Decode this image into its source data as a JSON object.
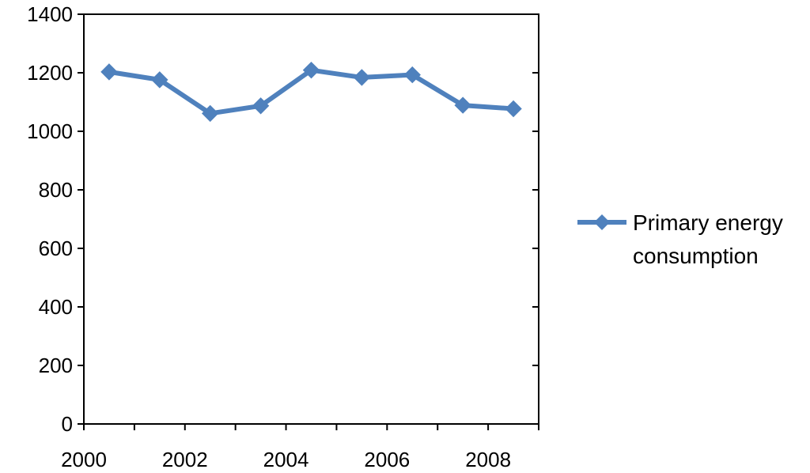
{
  "chart_data": {
    "type": "line",
    "x": [
      2000,
      2001,
      2002,
      2003,
      2004,
      2005,
      2006,
      2007,
      2008
    ],
    "x_tick_labels": [
      "2000",
      "2002",
      "2004",
      "2006",
      "2008"
    ],
    "x_tick_values": [
      2000,
      2002,
      2004,
      2006,
      2008
    ],
    "series": [
      {
        "name": "Primary energy consumption",
        "name_lines": [
          "Primary energy",
          "consumption"
        ],
        "values": [
          1203,
          1176,
          1061,
          1087,
          1209,
          1184,
          1193,
          1089,
          1077
        ],
        "color": "#4F81BD",
        "marker": "diamond"
      }
    ],
    "y_tick_labels": [
      "0",
      "200",
      "400",
      "600",
      "800",
      "1000",
      "1200",
      "1400"
    ],
    "y_tick_values": [
      0,
      200,
      400,
      600,
      800,
      1000,
      1200,
      1400
    ],
    "ylim": [
      0,
      1400
    ],
    "xlim": [
      2000,
      2009
    ],
    "title": "",
    "xlabel": "",
    "ylabel": "",
    "grid": false,
    "legend_position": "right"
  }
}
